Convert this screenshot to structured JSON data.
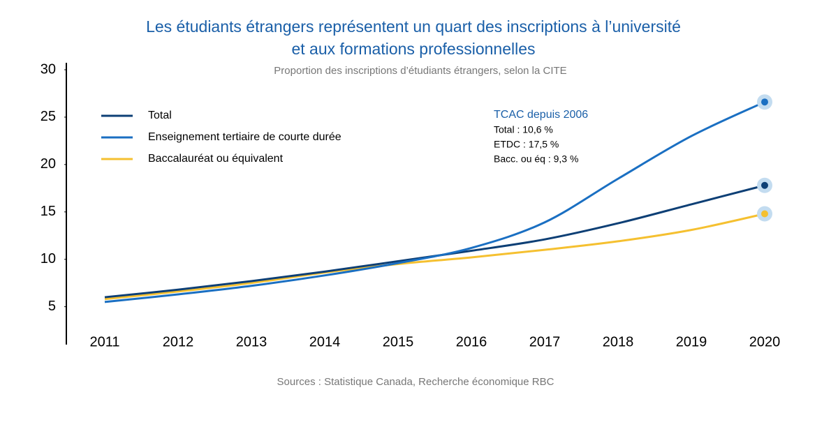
{
  "chart_data": {
    "type": "line",
    "title": [
      "Les étudiants étrangers représentent un quart des inscriptions à l’université",
      "et aux formations professionnelles"
    ],
    "subtitle": "Proportion des inscriptions d’étudiants étrangers, selon la CITE",
    "source": "Sources : Statistique Canada, Recherche économique RBC",
    "categories": [
      "2011",
      "2012",
      "2013",
      "2014",
      "2015",
      "2016",
      "2017",
      "2018",
      "2019",
      "2020"
    ],
    "series": [
      {
        "name": "Total",
        "color": "#0d3f75",
        "values": [
          6.0,
          6.8,
          7.7,
          8.7,
          9.8,
          10.9,
          12.1,
          13.8,
          15.8,
          17.8
        ]
      },
      {
        "name": "Enseignement tertiaire de courte durée",
        "color": "#1a6fc2",
        "values": [
          5.5,
          6.3,
          7.2,
          8.3,
          9.6,
          11.2,
          13.9,
          18.5,
          23.0,
          26.6
        ]
      },
      {
        "name": "Baccalauréat ou équivalent",
        "color": "#f5c030",
        "values": [
          5.8,
          6.6,
          7.5,
          8.6,
          9.5,
          10.2,
          11.0,
          11.9,
          13.1,
          14.8
        ]
      }
    ],
    "annotation": {
      "title": "TCAC depuis 2006",
      "lines": [
        "Total : 10,6 %",
        "ETDC : 17,5 %",
        "Bacc. ou éq : 9,3 %"
      ]
    },
    "ylim": [
      1,
      30
    ],
    "yticks": [
      5,
      10,
      15,
      20,
      25,
      30
    ],
    "legend": "upper left"
  }
}
